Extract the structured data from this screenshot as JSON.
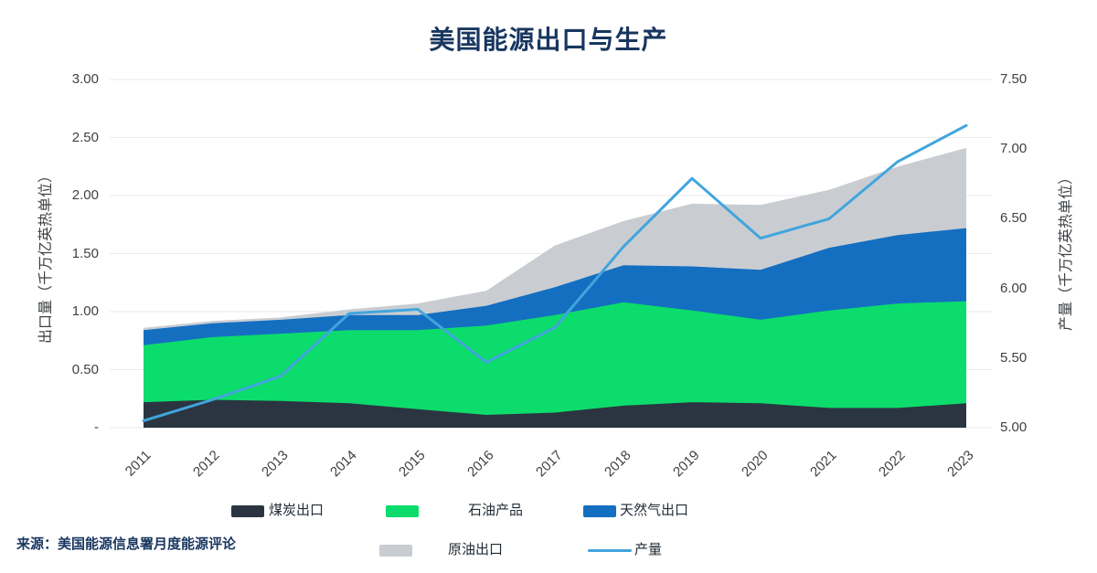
{
  "title": "美国能源出口与生产",
  "source": "来源：美国能源信息署月度能源评论",
  "axes": {
    "left": {
      "title": "出口量（千万亿英热单位）",
      "ticks": [
        {
          "label": "3.00",
          "value": 3.0
        },
        {
          "label": "2.50",
          "value": 2.5
        },
        {
          "label": "2.00",
          "value": 2.0
        },
        {
          "label": "1.50",
          "value": 1.5
        },
        {
          "label": "1.00",
          "value": 1.0
        },
        {
          "label": "0.50",
          "value": 0.5
        },
        {
          "label": "-",
          "value": 0.0
        }
      ]
    },
    "right": {
      "title": "产量（千万亿英热单位）",
      "ticks": [
        {
          "label": "7.50",
          "value": 7.5
        },
        {
          "label": "7.00",
          "value": 7.0
        },
        {
          "label": "6.50",
          "value": 6.5
        },
        {
          "label": "6.00",
          "value": 6.0
        },
        {
          "label": "5.50",
          "value": 5.5
        },
        {
          "label": "5.00",
          "value": 5.0
        }
      ]
    },
    "x": {
      "labels": [
        "2011",
        "2012",
        "2013",
        "2014",
        "2015",
        "2016",
        "2017",
        "2018",
        "2019",
        "2020",
        "2021",
        "2022",
        "2023"
      ]
    }
  },
  "legend": {
    "items": [
      {
        "id": "coal",
        "label": "煤炭出口",
        "color": "#2b3541",
        "type": "swatch"
      },
      {
        "id": "petroleum",
        "label": "石油产品",
        "color": "#0cdc6c",
        "type": "swatch"
      },
      {
        "id": "gas",
        "label": "天然气出口",
        "color": "#146fc1",
        "type": "swatch"
      },
      {
        "id": "crude",
        "label": "原油出口",
        "color": "#c9cdd2",
        "type": "swatch"
      },
      {
        "id": "production",
        "label": "产量",
        "color": "#41a5dd",
        "type": "line"
      }
    ]
  },
  "chart_data": {
    "type": "area",
    "title": "美国能源出口与生产",
    "x": [
      2011,
      2012,
      2013,
      2014,
      2015,
      2016,
      2017,
      2018,
      2019,
      2020,
      2021,
      2022,
      2023
    ],
    "stacked": true,
    "left_axis": {
      "label": "出口量（千万亿英热单位）",
      "range": [
        0,
        3.0
      ]
    },
    "right_axis": {
      "label": "产量（千万亿英热单位）",
      "range": [
        5.0,
        7.5
      ]
    },
    "grid": "horizontal",
    "legend_position": "bottom",
    "stacked_series": [
      {
        "id": "coal",
        "name": "煤炭出口",
        "axis": "left",
        "color": "#2b3541",
        "values": [
          0.22,
          0.24,
          0.23,
          0.21,
          0.16,
          0.11,
          0.13,
          0.19,
          0.22,
          0.21,
          0.17,
          0.17,
          0.21
        ]
      },
      {
        "id": "petroleum",
        "name": "石油产品",
        "axis": "left",
        "color": "#0cdc6c",
        "values": [
          0.49,
          0.54,
          0.58,
          0.63,
          0.68,
          0.77,
          0.84,
          0.89,
          0.79,
          0.72,
          0.84,
          0.9,
          0.88
        ]
      },
      {
        "id": "gas",
        "name": "天然气出口",
        "axis": "left",
        "color": "#146fc1",
        "values": [
          0.13,
          0.12,
          0.12,
          0.13,
          0.13,
          0.17,
          0.24,
          0.32,
          0.38,
          0.43,
          0.54,
          0.59,
          0.63
        ]
      },
      {
        "id": "crude",
        "name": "原油出口",
        "axis": "left",
        "color": "#c9cdd2",
        "values": [
          0.02,
          0.02,
          0.02,
          0.05,
          0.1,
          0.13,
          0.36,
          0.38,
          0.54,
          0.56,
          0.5,
          0.59,
          0.69
        ]
      }
    ],
    "line_series": {
      "id": "production",
      "name": "产量",
      "axis": "right",
      "color": "#41a5dd",
      "values": [
        5.05,
        5.2,
        5.37,
        5.82,
        5.85,
        5.47,
        5.72,
        6.3,
        6.79,
        6.36,
        6.5,
        6.91,
        7.17
      ]
    }
  },
  "colors": {
    "title_text": "#18365f",
    "axis_text": "#3d4145",
    "legend_text": "#222b36",
    "gridline": "#e9eaec",
    "coal": "#2b3541",
    "petroleum": "#0cdc6c",
    "gas": "#146fc1",
    "crude": "#c9cdd2",
    "production_line": "#41a5dd"
  }
}
